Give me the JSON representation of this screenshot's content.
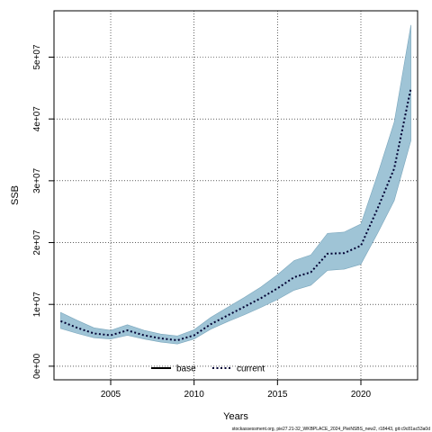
{
  "chart_data": {
    "type": "area",
    "title": "",
    "xlabel": "Years",
    "ylabel": "SSB",
    "xlim": [
      2001.6,
      2023.4
    ],
    "ylim": [
      -2200000,
      57500000
    ],
    "x_ticks": [
      2005,
      2010,
      2015,
      2020
    ],
    "y_ticks": [
      0,
      10000000,
      20000000,
      30000000,
      40000000,
      50000000
    ],
    "y_tick_labels": [
      "0e+00",
      "1e+07",
      "2e+07",
      "3e+07",
      "4e+07",
      "5e+07"
    ],
    "grid": true,
    "legend_position": "bottom-center",
    "x": [
      2002,
      2003,
      2004,
      2005,
      2006,
      2007,
      2008,
      2009,
      2010,
      2011,
      2012,
      2013,
      2014,
      2015,
      2016,
      2017,
      2018,
      2019,
      2020,
      2021,
      2022,
      2023
    ],
    "series": [
      {
        "name": "current",
        "style": "dotted",
        "color": "#000033",
        "values": [
          7300000,
          6200000,
          5300000,
          5000000,
          5800000,
          5000000,
          4500000,
          4200000,
          5000000,
          6800000,
          8200000,
          9600000,
          11000000,
          12600000,
          14400000,
          15200000,
          18200000,
          18300000,
          19500000,
          25500000,
          32000000,
          45000000
        ],
        "lower": [
          6100000,
          5300000,
          4600000,
          4400000,
          5000000,
          4400000,
          3900000,
          3600000,
          4400000,
          6000000,
          7200000,
          8300000,
          9500000,
          10800000,
          12300000,
          13100000,
          15500000,
          15700000,
          16500000,
          21500000,
          26800000,
          36500000
        ],
        "upper": [
          8700000,
          7400000,
          6200000,
          5800000,
          6700000,
          5800000,
          5200000,
          4900000,
          5900000,
          7900000,
          9500000,
          11100000,
          12800000,
          14800000,
          17100000,
          18000000,
          21500000,
          21700000,
          23000000,
          31000000,
          39500000,
          55200000
        ]
      }
    ],
    "band_color": "#9fc4d6",
    "band_edge_color": "#7aa6bc",
    "legend": [
      {
        "label": "base",
        "style": "solid",
        "color": "#000000"
      },
      {
        "label": "current",
        "style": "dotted",
        "color": "#000033"
      }
    ],
    "footnote": "stockassessment.org, pie27.21-32_WKBPLACE_2024_PleiNSBS_new2, r18443, git:c9c81ac53a0d"
  }
}
